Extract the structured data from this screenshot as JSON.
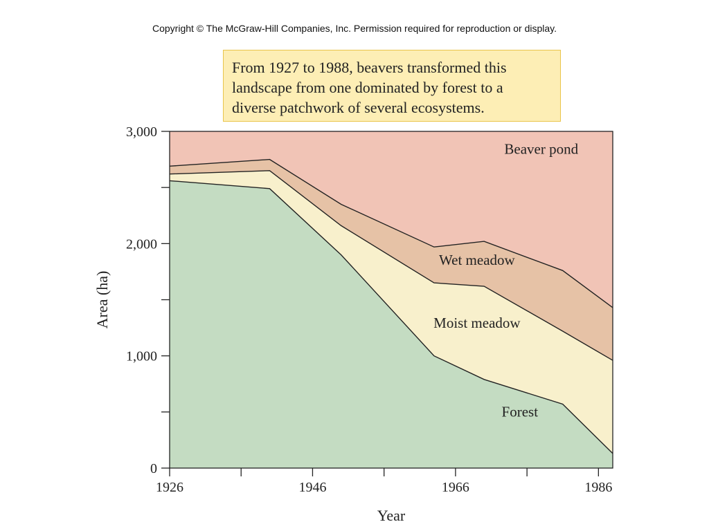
{
  "copyright": "Copyright © The McGraw-Hill Companies, Inc. Permission required for reproduction or display.",
  "caption": {
    "lines": [
      "From 1927 to 1988, beavers transformed this",
      "landscape from one dominated by forest to a",
      "diverse patchwork of several ecosystems."
    ]
  },
  "chart_data": {
    "type": "area",
    "stacked": true,
    "title": "",
    "xlabel": "Year",
    "ylabel": "Area (ha)",
    "xlim": [
      1926,
      1988
    ],
    "ylim": [
      0,
      3000
    ],
    "x_ticks": [
      1926,
      1936,
      1946,
      1956,
      1966,
      1976,
      1986
    ],
    "x_tick_labels": [
      "1926",
      "",
      "1946",
      "",
      "1966",
      "",
      "1986"
    ],
    "y_ticks": [
      0,
      500,
      1000,
      1500,
      2000,
      2500,
      3000
    ],
    "y_tick_labels": [
      "0",
      "",
      "1,000",
      "",
      "2,000",
      "",
      "3,000"
    ],
    "grid": false,
    "legend": "none (regions labeled directly)",
    "x": [
      1926,
      1940,
      1950,
      1963,
      1970,
      1981,
      1988
    ],
    "series": [
      {
        "name": "Forest",
        "color": "#c4dcc2",
        "values": [
          2560,
          2490,
          1900,
          1000,
          790,
          570,
          130
        ]
      },
      {
        "name": "Moist meadow",
        "color": "#f8f0cc",
        "values": [
          60,
          160,
          260,
          650,
          830,
          650,
          830
        ]
      },
      {
        "name": "Wet meadow",
        "color": "#e6c2a6",
        "values": [
          70,
          100,
          190,
          320,
          400,
          540,
          470
        ]
      },
      {
        "name": "Beaver pond",
        "color": "#f1c4b6",
        "values": [
          310,
          250,
          650,
          1030,
          980,
          1240,
          1570
        ]
      }
    ],
    "region_labels": [
      {
        "text": "Beaver pond",
        "x": 1978,
        "y": 2800
      },
      {
        "text": "Wet meadow",
        "x": 1969,
        "y": 1810
      },
      {
        "text": "Moist meadow",
        "x": 1969,
        "y": 1250
      },
      {
        "text": "Forest",
        "x": 1975,
        "y": 460
      }
    ]
  }
}
